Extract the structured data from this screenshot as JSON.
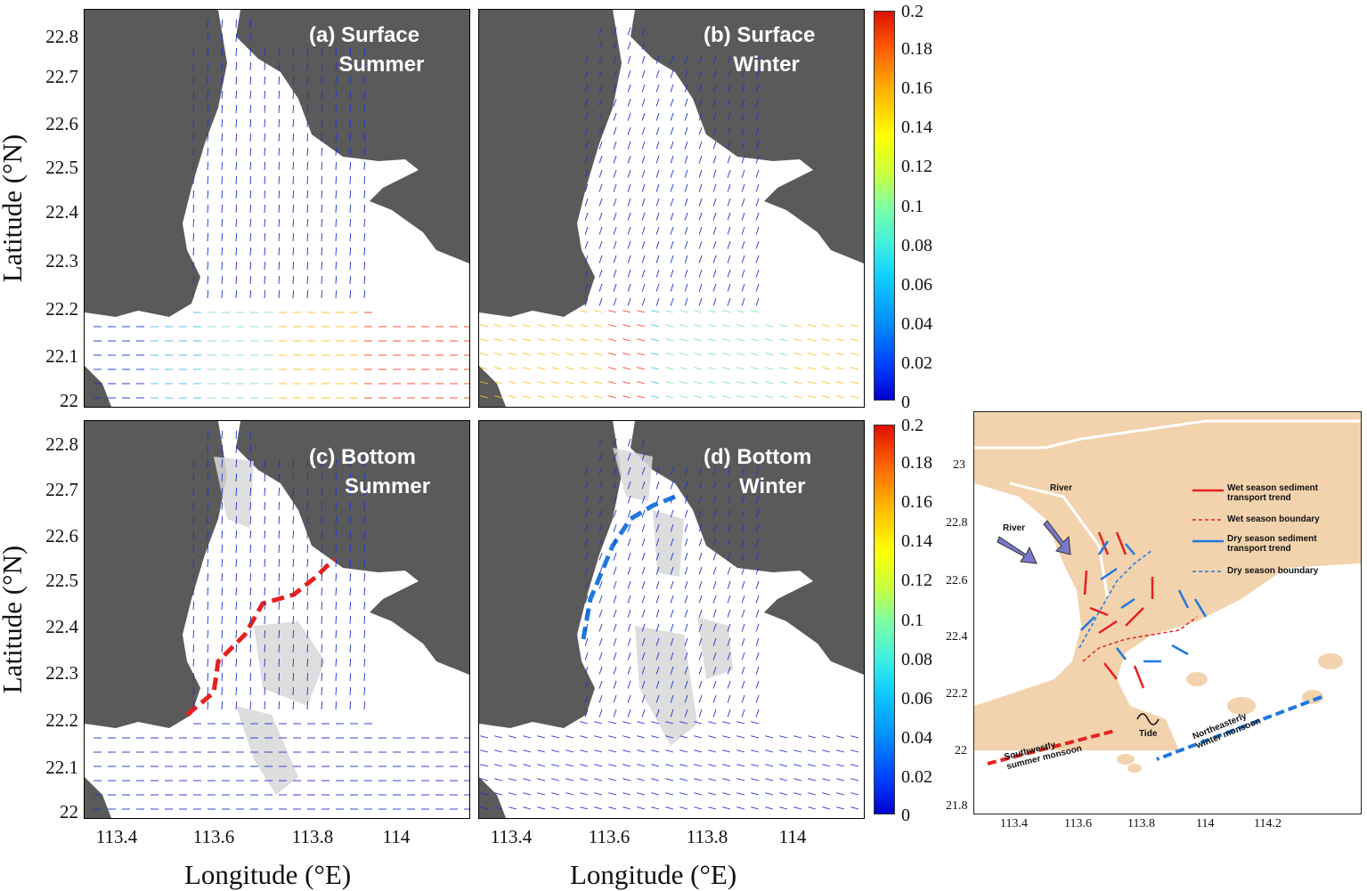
{
  "panels": [
    {
      "id": "a",
      "label": "(a) Surface\n     Summer"
    },
    {
      "id": "b",
      "label": "(b) Surface\n     Winter"
    },
    {
      "id": "c",
      "label": "(c) Bottom\n      Summer"
    },
    {
      "id": "d",
      "label": "(d) Bottom\n      Winter"
    }
  ],
  "axes": {
    "ylabel": "Latitude (°N)",
    "xlabel": "Longitude (°E)",
    "yticks": [
      "22.8",
      "22.7",
      "22.6",
      "22.5",
      "22.4",
      "22.3",
      "22.2",
      "22.1",
      "22"
    ],
    "xticks": [
      "113.4",
      "113.6",
      "113.8",
      "114"
    ]
  },
  "colorbar": {
    "ticks": [
      "0.2",
      "0.18",
      "0.16",
      "0.14",
      "0.12",
      "0.1",
      "0.08",
      "0.06",
      "0.04",
      "0.02",
      "0"
    ],
    "colors": [
      "#0000d0",
      "#0090ff",
      "#40f0e0",
      "#c8ff40",
      "#ffff00",
      "#ff6000",
      "#e01000"
    ]
  },
  "concept_map": {
    "legend": {
      "wet_trend": "Wet season sediment\ntransport trend",
      "wet_boundary": "Wet season boundary",
      "dry_trend": "Dry season sediment\ntransport trend",
      "dry_boundary": "Dry season boundary"
    },
    "labels": {
      "river1": "River",
      "river2": "River",
      "tide": "Tide",
      "summer_monsoon": "Southwestly\nsummer monsoon",
      "winter_monsoon": "Northeasterly\nwinter monsoon"
    },
    "yticks": [
      "23",
      "22.8",
      "22.6",
      "22.4",
      "22.2",
      "22",
      "21.8"
    ],
    "xticks": [
      "113.4",
      "113.6",
      "113.8",
      "114",
      "114.2"
    ],
    "colors": {
      "land": "#f2d3ad",
      "wet": "#e82020",
      "dry": "#1e78e0",
      "river": "#7a78c8"
    }
  }
}
